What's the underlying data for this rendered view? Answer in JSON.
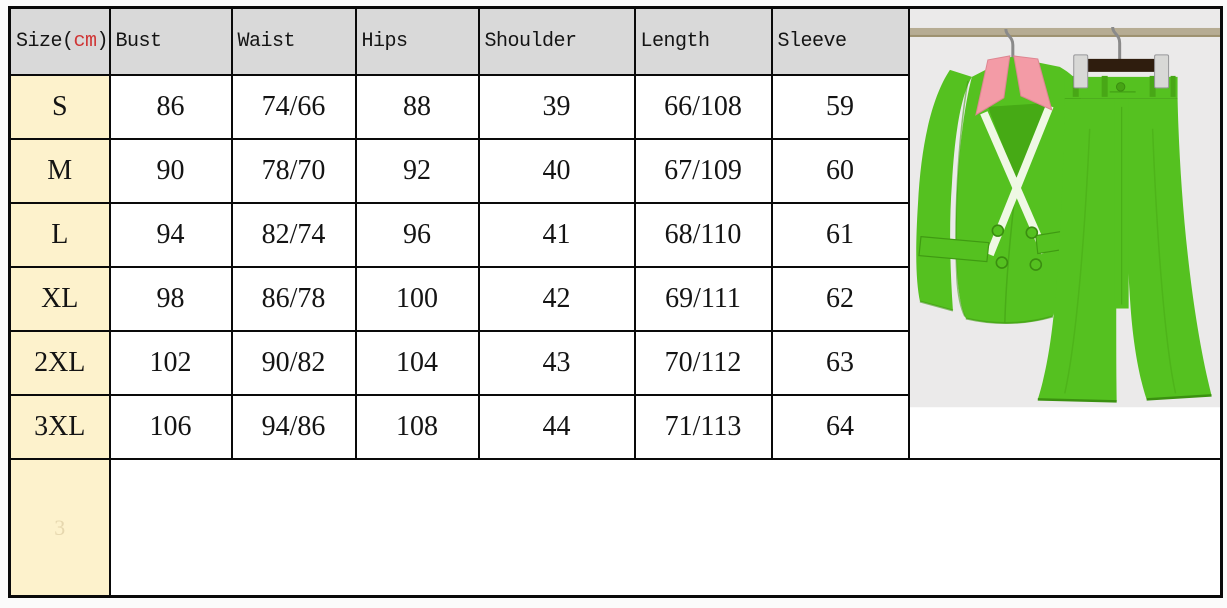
{
  "size_chart": {
    "unit_cell": {
      "prefix": "Size(",
      "unit": "cm",
      "suffix": ")"
    },
    "columns": [
      "Bust",
      "Waist",
      "Hips",
      "Shoulder",
      "Length",
      "Sleeve"
    ],
    "rows": [
      {
        "size": "S",
        "bust": "86",
        "waist": "74/66",
        "hips": "88",
        "shoulder": "39",
        "length": "66/108",
        "sleeve": "59"
      },
      {
        "size": "M",
        "bust": "90",
        "waist": "78/70",
        "hips": "92",
        "shoulder": "40",
        "length": "67/109",
        "sleeve": "60"
      },
      {
        "size": "L",
        "bust": "94",
        "waist": "82/74",
        "hips": "96",
        "shoulder": "41",
        "length": "68/110",
        "sleeve": "61"
      },
      {
        "size": "XL",
        "bust": "98",
        "waist": "86/78",
        "hips": "100",
        "shoulder": "42",
        "length": "69/111",
        "sleeve": "62"
      },
      {
        "size": "2XL",
        "bust": "102",
        "waist": "90/82",
        "hips": "104",
        "shoulder": "43",
        "length": "70/112",
        "sleeve": "63"
      },
      {
        "size": "3XL",
        "bust": "106",
        "waist": "94/86",
        "hips": "108",
        "shoulder": "44",
        "length": "71/113",
        "sleeve": "64"
      }
    ],
    "footer_watermark": "3",
    "colors": {
      "header_bg": "#d9d9d9",
      "size_col_bg": "#fdf2cc",
      "unit_red": "#cf3636",
      "border": "#0a0a0a"
    }
  },
  "photo": {
    "description": "green pantsuit with pink collar hanging on wooden hangers",
    "colors": {
      "background": "#ebeaea",
      "suit_green": "#55c120",
      "suit_green_dark": "#3f9a12",
      "collar_pink": "#f39ba6",
      "lapel_trim": "#eff8e4",
      "hanger_wood": "#2f1d0e",
      "metal": "#8a8a8a",
      "clip_silver": "#d8d8d6",
      "rod": "#b6ac93",
      "bottom_strip": "#ffffff"
    }
  }
}
